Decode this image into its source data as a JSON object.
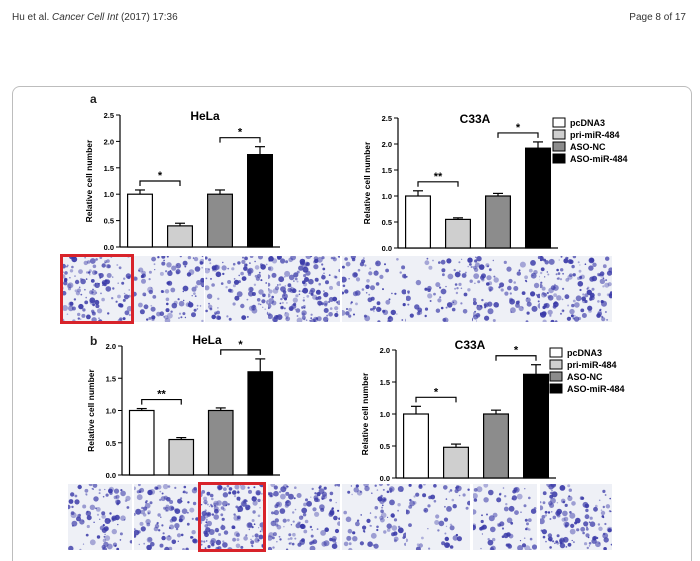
{
  "header": {
    "authors": "Hu et al.",
    "journal": "Cancer Cell Int",
    "citation": "(2017) 17:36",
    "page": "Page 8 of 17"
  },
  "legend": {
    "entries": [
      {
        "label": "pcDNA3",
        "color": "#ffffff"
      },
      {
        "label": "pri-miR-484",
        "color": "#cfcfcf"
      },
      {
        "label": "ASO-NC",
        "color": "#8c8c8c"
      },
      {
        "label": "ASO-miR-484",
        "color": "#000000"
      }
    ]
  },
  "chart_data": [
    {
      "panel": "a",
      "type": "bar",
      "title": "HeLa",
      "ylabel": "Relative cell number",
      "categories": [
        "pcDNA3",
        "pri-miR-484",
        "ASO-NC",
        "ASO-miR-484"
      ],
      "values": [
        1.0,
        0.4,
        1.0,
        1.75
      ],
      "errors": [
        0.08,
        0.05,
        0.08,
        0.15
      ],
      "ylim": [
        0,
        2.5
      ],
      "yticks": [
        "0.0",
        "0.5",
        "1.0",
        "1.5",
        "2.0",
        "2.5"
      ],
      "significance": [
        {
          "from": 0,
          "to": 1,
          "label": "*"
        },
        {
          "from": 2,
          "to": 3,
          "label": "*"
        }
      ]
    },
    {
      "panel": "a",
      "type": "bar",
      "title": "C33A",
      "ylabel": "Relative cell number",
      "categories": [
        "pcDNA3",
        "pri-miR-484",
        "ASO-NC",
        "ASO-miR-484"
      ],
      "values": [
        1.0,
        0.55,
        1.0,
        1.92
      ],
      "errors": [
        0.1,
        0.03,
        0.05,
        0.12
      ],
      "ylim": [
        0,
        2.5
      ],
      "yticks": [
        "0.0",
        "0.5",
        "1.0",
        "1.5",
        "2.0",
        "2.5"
      ],
      "significance": [
        {
          "from": 0,
          "to": 1,
          "label": "**"
        },
        {
          "from": 2,
          "to": 3,
          "label": "*"
        }
      ],
      "legend": "right"
    },
    {
      "panel": "b",
      "type": "bar",
      "title": "HeLa",
      "ylabel": "Relative cell number",
      "categories": [
        "pcDNA3",
        "pri-miR-484",
        "ASO-NC",
        "ASO-miR-484"
      ],
      "values": [
        1.0,
        0.55,
        1.0,
        1.6
      ],
      "errors": [
        0.03,
        0.03,
        0.04,
        0.2
      ],
      "ylim": [
        0,
        2.0
      ],
      "yticks": [
        "0.0",
        "0.5",
        "1.0",
        "1.5",
        "2.0"
      ],
      "significance": [
        {
          "from": 0,
          "to": 1,
          "label": "**"
        },
        {
          "from": 2,
          "to": 3,
          "label": "*"
        }
      ]
    },
    {
      "panel": "b",
      "type": "bar",
      "title": "C33A",
      "ylabel": "Relative cell number",
      "categories": [
        "pcDNA3",
        "pri-miR-484",
        "ASO-NC",
        "ASO-miR-484"
      ],
      "values": [
        1.0,
        0.48,
        1.0,
        1.62
      ],
      "errors": [
        0.12,
        0.05,
        0.06,
        0.15
      ],
      "ylim": [
        0,
        2.0
      ],
      "yticks": [
        "0.0",
        "0.5",
        "1.0",
        "1.5",
        "2.0"
      ],
      "significance": [
        {
          "from": 0,
          "to": 1,
          "label": "*"
        },
        {
          "from": 2,
          "to": 3,
          "label": "*"
        }
      ],
      "legend": "right"
    }
  ],
  "panels": {
    "a_label": "a",
    "b_label": "b"
  },
  "micrographs": {
    "stain_color": "#3a3aa8",
    "highlight_color": "#d8232a"
  }
}
